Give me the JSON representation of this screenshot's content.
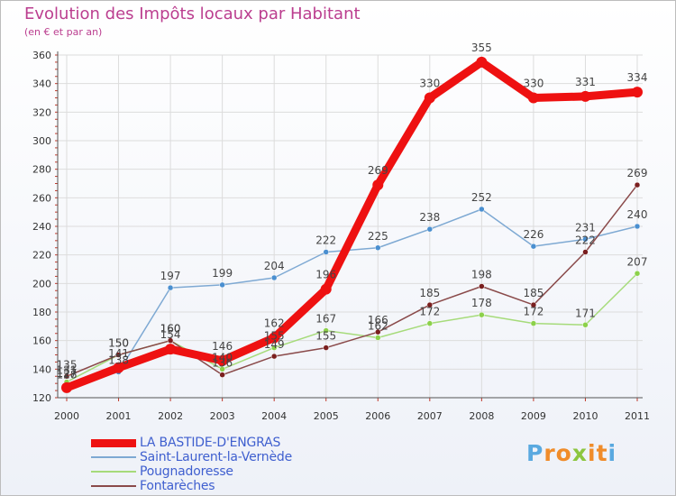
{
  "header": {
    "title": "Evolution des Impôts locaux par Habitant",
    "subtitle": "(en € et par an)"
  },
  "logo": {
    "letters": [
      "P",
      "r",
      "o",
      "x",
      "i",
      "t",
      "i"
    ],
    "colors": [
      "#5aa9e0",
      "#f08c2a",
      "#f08c2a",
      "#8cc63f",
      "#f08c2a",
      "#f08c2a",
      "#5aa9e0"
    ]
  },
  "chart_data": {
    "type": "line",
    "title": "Evolution des Impôts locaux par Habitant",
    "subtitle": "(en € et par an)",
    "xlabel": "",
    "ylabel": "",
    "categories": [
      "2000",
      "2001",
      "2002",
      "2003",
      "2004",
      "2005",
      "2006",
      "2007",
      "2008",
      "2009",
      "2010",
      "2011"
    ],
    "ylim": [
      120,
      360
    ],
    "yticks": [
      120,
      140,
      160,
      180,
      200,
      220,
      240,
      260,
      280,
      300,
      320,
      340,
      360
    ],
    "grid": true,
    "legend_position": "bottom-left",
    "series": [
      {
        "name": "LA BASTIDE-D'ENGRAS",
        "color": "#ee1111",
        "emphasis": "thick",
        "values": [
          127,
          141,
          154,
          146,
          162,
          196,
          269,
          330,
          355,
          330,
          331,
          334
        ]
      },
      {
        "name": "Saint-Laurent-la-Vernède",
        "color": "#7ea9d3",
        "point_color": "#4a8fd0",
        "values": [
          128,
          138,
          197,
          199,
          204,
          222,
          225,
          238,
          252,
          226,
          231,
          240
        ]
      },
      {
        "name": "Pougnadoresse",
        "color": "#a6db7a",
        "point_color": "#8cd14a",
        "values": [
          131,
          150,
          160,
          140,
          155,
          167,
          162,
          172,
          178,
          172,
          171,
          207
        ]
      },
      {
        "name": "Fontarèches",
        "color": "#8a4a4a",
        "point_color": "#7a1f1f",
        "values": [
          135,
          150,
          160,
          136,
          149,
          155,
          166,
          185,
          198,
          185,
          222,
          269
        ]
      }
    ]
  }
}
